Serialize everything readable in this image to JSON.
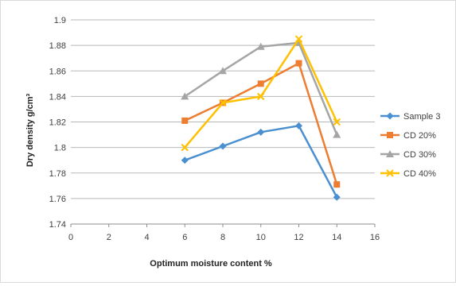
{
  "chart_data": {
    "type": "line",
    "title": "",
    "xlabel": "Optimum moisture content %",
    "ylabel": "Dry density g/cm³",
    "xlim": [
      0,
      16
    ],
    "ylim": [
      1.74,
      1.9
    ],
    "x_ticks": [
      0,
      2,
      4,
      6,
      8,
      10,
      12,
      14,
      16
    ],
    "x_tick_labels": [
      "0",
      "2",
      "4",
      "6",
      "8",
      "10",
      "12",
      "14",
      "16"
    ],
    "y_ticks": [
      1.74,
      1.76,
      1.78,
      1.8,
      1.82,
      1.84,
      1.86,
      1.88,
      1.9
    ],
    "y_tick_labels": [
      "1.74",
      "1.76",
      "1.78",
      "1.8",
      "1.82",
      "1.84",
      "1.86",
      "1.88",
      "1.9"
    ],
    "grid": "horizontal",
    "legend_position": "right",
    "series": [
      {
        "name": "Sample 3",
        "color": "#4a90d0",
        "marker": "diamond",
        "x": [
          6,
          8,
          10,
          12,
          14
        ],
        "y": [
          1.79,
          1.801,
          1.812,
          1.817,
          1.761
        ]
      },
      {
        "name": "CD 20%",
        "color": "#ed7d31",
        "marker": "square",
        "x": [
          6,
          8,
          10,
          12,
          14
        ],
        "y": [
          1.821,
          1.835,
          1.85,
          1.866,
          1.771
        ]
      },
      {
        "name": "CD 30%",
        "color": "#a5a5a5",
        "marker": "triangle",
        "x": [
          6,
          8,
          10,
          12,
          14
        ],
        "y": [
          1.84,
          1.86,
          1.879,
          1.882,
          1.81
        ]
      },
      {
        "name": "CD 40%",
        "color": "#ffc000",
        "marker": "x",
        "x": [
          6,
          8,
          10,
          12,
          14
        ],
        "y": [
          1.8,
          1.835,
          1.84,
          1.885,
          1.82
        ]
      }
    ]
  }
}
